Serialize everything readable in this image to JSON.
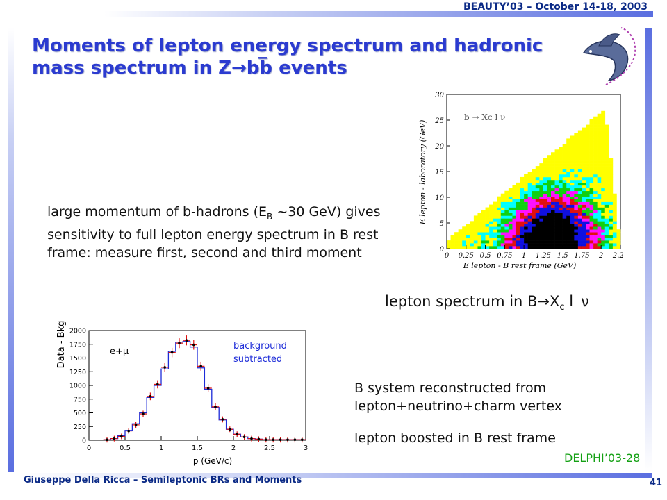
{
  "header": {
    "conference": "BEAUTY’03 – October 14-18, 2003"
  },
  "title": {
    "line1": "Moments of lepton energy spectrum and hadronic",
    "line2": "mass spectrum in Z→bb̅ events"
  },
  "body": {
    "main_paragraph": "large momentum of b-hadrons (Eʙ ~30 GeV) gives sensitivity to full lepton energy spectrum in B rest frame: measure first, second and third moment",
    "main_paragraph_parts": {
      "before_sub": "large momentum of b-hadrons (E",
      "sub": "B",
      "after_sub": " ~30 GeV) gives sensitivity to full lepton energy spectrum in B rest frame: measure first, second and third moment"
    },
    "spectrum_caption": "lepton spectrum in B→X",
    "spectrum_caption_sub": "c",
    "spectrum_caption_end": " l⁻ν",
    "b_system": "B system reconstructed from lepton+neutrino+charm vertex",
    "boosted": "lepton boosted in B rest frame",
    "delphi": "DELPHI’03-28"
  },
  "footer": {
    "author": "Giuseppe Della Ricca – Semileptonic BRs and Moments",
    "page": "41"
  },
  "colors": {
    "title": "#2b3bd0",
    "footer": "#0b2a86",
    "delphi": "#14a014",
    "hist_data": "#e01010",
    "hist_mc": "#1c2bd8"
  },
  "chart_data": [
    {
      "type": "heatmap",
      "annotation": "b → Xᴄ l ν",
      "xlabel": "E lepton - B rest frame (GeV)",
      "ylabel": "E lepton - laboratory (GeV)",
      "xlim": [
        0,
        2.25
      ],
      "ylim": [
        0,
        30
      ],
      "x_ticks": [
        "0",
        "0.25",
        "0.5",
        "0.75",
        "1",
        "1.25",
        "1.5",
        "1.75",
        "2",
        "2.25"
      ],
      "y_ticks": [
        "0",
        "5",
        "10",
        "15",
        "20",
        "25",
        "30"
      ],
      "levels": [
        "black",
        "blue",
        "red",
        "magenta",
        "green",
        "cyan",
        "yellow"
      ],
      "level_colors": [
        "#000000",
        "#1010e0",
        "#e01010",
        "#ff10ff",
        "#10d010",
        "#00ffff",
        "#ffff00"
      ]
    },
    {
      "type": "bar",
      "label": "e+μ",
      "annotation": "background subtracted",
      "xlabel": "p (GeV/c)",
      "ylabel": "Data - Bkg",
      "xlim": [
        0,
        3
      ],
      "ylim": [
        0,
        2000
      ],
      "x_ticks": [
        "0",
        "0.5",
        "1",
        "1.5",
        "2",
        "2.5",
        "3"
      ],
      "y_ticks": [
        "0",
        "250",
        "500",
        "750",
        "1000",
        "1250",
        "1500",
        "1750",
        "2000"
      ],
      "bin_width": 0.1,
      "bin_edges_start": 0.2,
      "data": [
        10,
        30,
        70,
        170,
        280,
        480,
        800,
        1020,
        1330,
        1600,
        1770,
        1820,
        1740,
        1350,
        950,
        610,
        380,
        200,
        110,
        60,
        30,
        20,
        10,
        10,
        10,
        10,
        10,
        10
      ],
      "mc": [
        10,
        30,
        80,
        180,
        300,
        500,
        780,
        1000,
        1300,
        1620,
        1790,
        1800,
        1700,
        1320,
        930,
        600,
        370,
        200,
        110,
        60,
        30,
        20,
        10,
        10,
        10,
        10,
        10,
        10
      ]
    }
  ]
}
